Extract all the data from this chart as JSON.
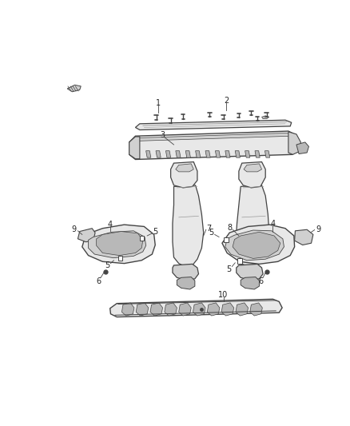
{
  "bg_color": "#ffffff",
  "line_color": "#444444",
  "fill_light": "#e8e8e8",
  "fill_mid": "#d0d0d0",
  "fill_dark": "#b8b8b8",
  "fig_width": 4.38,
  "fig_height": 5.33,
  "dpi": 100
}
